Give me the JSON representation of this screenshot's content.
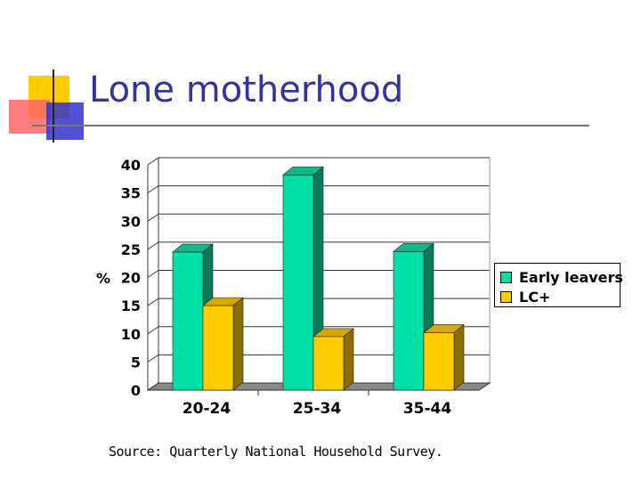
{
  "slide": {
    "title": "Lone motherhood",
    "source": "Source: Quarterly National Household Survey."
  },
  "colors": {
    "title": "#333399",
    "series_early": "#00dfa5",
    "series_lc": "#ffcc00",
    "logo_yellow": "#ffcc00",
    "logo_red": "#ff6666",
    "logo_blue": "#3333cc"
  },
  "chart_data": {
    "type": "bar",
    "style": "3d-clustered",
    "categories": [
      "20-24",
      "25-34",
      "35-44"
    ],
    "series": [
      {
        "name": "Early leavers",
        "values": [
          24.5,
          38.2,
          24.6
        ]
      },
      {
        "name": "LC+",
        "values": [
          15.0,
          9.5,
          10.2
        ]
      }
    ],
    "ylabel": "%",
    "ylim": [
      0,
      40
    ],
    "yticks": [
      "0",
      "5",
      "10",
      "15",
      "20",
      "25",
      "30",
      "35",
      "40"
    ],
    "grid": true,
    "legend_position": "right"
  }
}
